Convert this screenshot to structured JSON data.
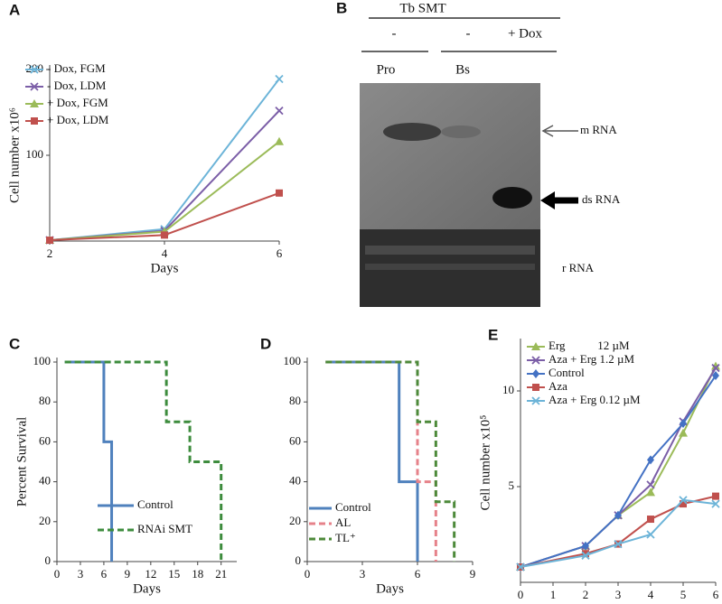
{
  "chart_data": [
    {
      "type": "line",
      "label": "A",
      "xlabel": "Days",
      "ylabel": "Cell number x10⁶",
      "x": [
        2,
        4,
        6
      ],
      "xlim": [
        2,
        6
      ],
      "ylim": [
        0,
        200
      ],
      "xticks": [
        2,
        4,
        6
      ],
      "yticks": [
        100,
        200
      ],
      "series": [
        {
          "name": "- Dox, FGM",
          "color": "#6cb4d8",
          "marker": "x",
          "values": [
            1,
            14,
            189
          ]
        },
        {
          "name": "- Dox, LDM",
          "color": "#7b5ea7",
          "marker": "x",
          "values": [
            1,
            12,
            152
          ]
        },
        {
          "name": "+ Dox, FGM",
          "color": "#9bbb59",
          "marker": "triangle",
          "values": [
            1,
            11,
            116
          ]
        },
        {
          "name": "+ Dox, LDM",
          "color": "#c0504d",
          "marker": "square",
          "values": [
            1,
            7,
            56
          ]
        }
      ]
    },
    {
      "type": "step",
      "label": "C",
      "xlabel": "Days",
      "ylabel": "Percent Survival",
      "xlim": [
        0,
        23
      ],
      "ylim": [
        0,
        100
      ],
      "xticks": [
        0,
        3,
        6,
        9,
        12,
        15,
        18,
        21
      ],
      "yticks": [
        0,
        20,
        40,
        60,
        80,
        100
      ],
      "series": [
        {
          "name": "Control",
          "color": "#4f81bd",
          "linestyle": "solid",
          "x": [
            1,
            6,
            6,
            7,
            7
          ],
          "values": [
            100,
            100,
            60,
            60,
            0
          ]
        },
        {
          "name": "RNAi SMT",
          "color": "#3d8c3d",
          "linestyle": "dashed",
          "x": [
            1,
            14,
            14,
            17,
            17,
            21,
            21
          ],
          "values": [
            100,
            100,
            70,
            70,
            50,
            50,
            0
          ]
        }
      ]
    },
    {
      "type": "step",
      "label": "D",
      "xlabel": "Days",
      "xlim": [
        0,
        9
      ],
      "ylim": [
        0,
        100
      ],
      "xticks": [
        0,
        3,
        6,
        9
      ],
      "yticks": [
        0,
        20,
        40,
        60,
        80,
        100
      ],
      "series": [
        {
          "name": "Control",
          "color": "#4f81bd",
          "linestyle": "solid",
          "x": [
            1,
            5,
            5,
            6,
            6
          ],
          "values": [
            100,
            100,
            40,
            40,
            0
          ]
        },
        {
          "name": "AL",
          "color": "#e6828a",
          "linestyle": "dashed",
          "x": [
            1,
            6,
            6,
            7,
            7
          ],
          "values": [
            100,
            100,
            40,
            40,
            0
          ]
        },
        {
          "name": "TL⁺",
          "color": "#4d8a3a",
          "linestyle": "dashed",
          "x": [
            1,
            6,
            6,
            7,
            7,
            8,
            8
          ],
          "values": [
            100,
            100,
            70,
            70,
            30,
            30,
            0
          ]
        }
      ]
    },
    {
      "type": "line",
      "label": "E",
      "xlabel": "Days",
      "ylabel": "Cell number x10⁵",
      "x": [
        0,
        2,
        3,
        4,
        5,
        6
      ],
      "xlim": [
        0,
        6
      ],
      "ylim": [
        0,
        12.5
      ],
      "xticks": [
        0,
        1,
        2,
        3,
        4,
        5,
        6
      ],
      "yticks": [
        5,
        10
      ],
      "series": [
        {
          "name": "Erg           12 µM",
          "color": "#9bbb59",
          "marker": "triangle",
          "values": [
            0.8,
            1.9,
            3.5,
            4.7,
            7.8,
            11.3
          ]
        },
        {
          "name": "Aza + Erg 1.2 µM",
          "color": "#7b5ea7",
          "marker": "x",
          "values": [
            0.8,
            1.9,
            3.5,
            5.1,
            8.4,
            11.2
          ]
        },
        {
          "name": "Control",
          "color": "#4472c4",
          "marker": "diamond",
          "values": [
            0.8,
            1.9,
            3.5,
            6.4,
            8.3,
            10.8
          ]
        },
        {
          "name": "Aza",
          "color": "#c0504d",
          "marker": "square",
          "values": [
            0.8,
            1.5,
            2.0,
            3.3,
            4.1,
            4.5
          ]
        },
        {
          "name": "Aza + Erg 0.12 µM",
          "color": "#6cb4d8",
          "marker": "x",
          "values": [
            0.8,
            1.4,
            2.0,
            2.5,
            4.3,
            4.1
          ]
        }
      ]
    }
  ],
  "gel": {
    "label": "B",
    "gene": "Tb SMT",
    "lane_signs": [
      "-",
      "-",
      "+ Dox"
    ],
    "groups": [
      "Pro",
      "Bs"
    ],
    "bands": [
      "m RNA",
      "ds RNA",
      "r RNA"
    ]
  }
}
